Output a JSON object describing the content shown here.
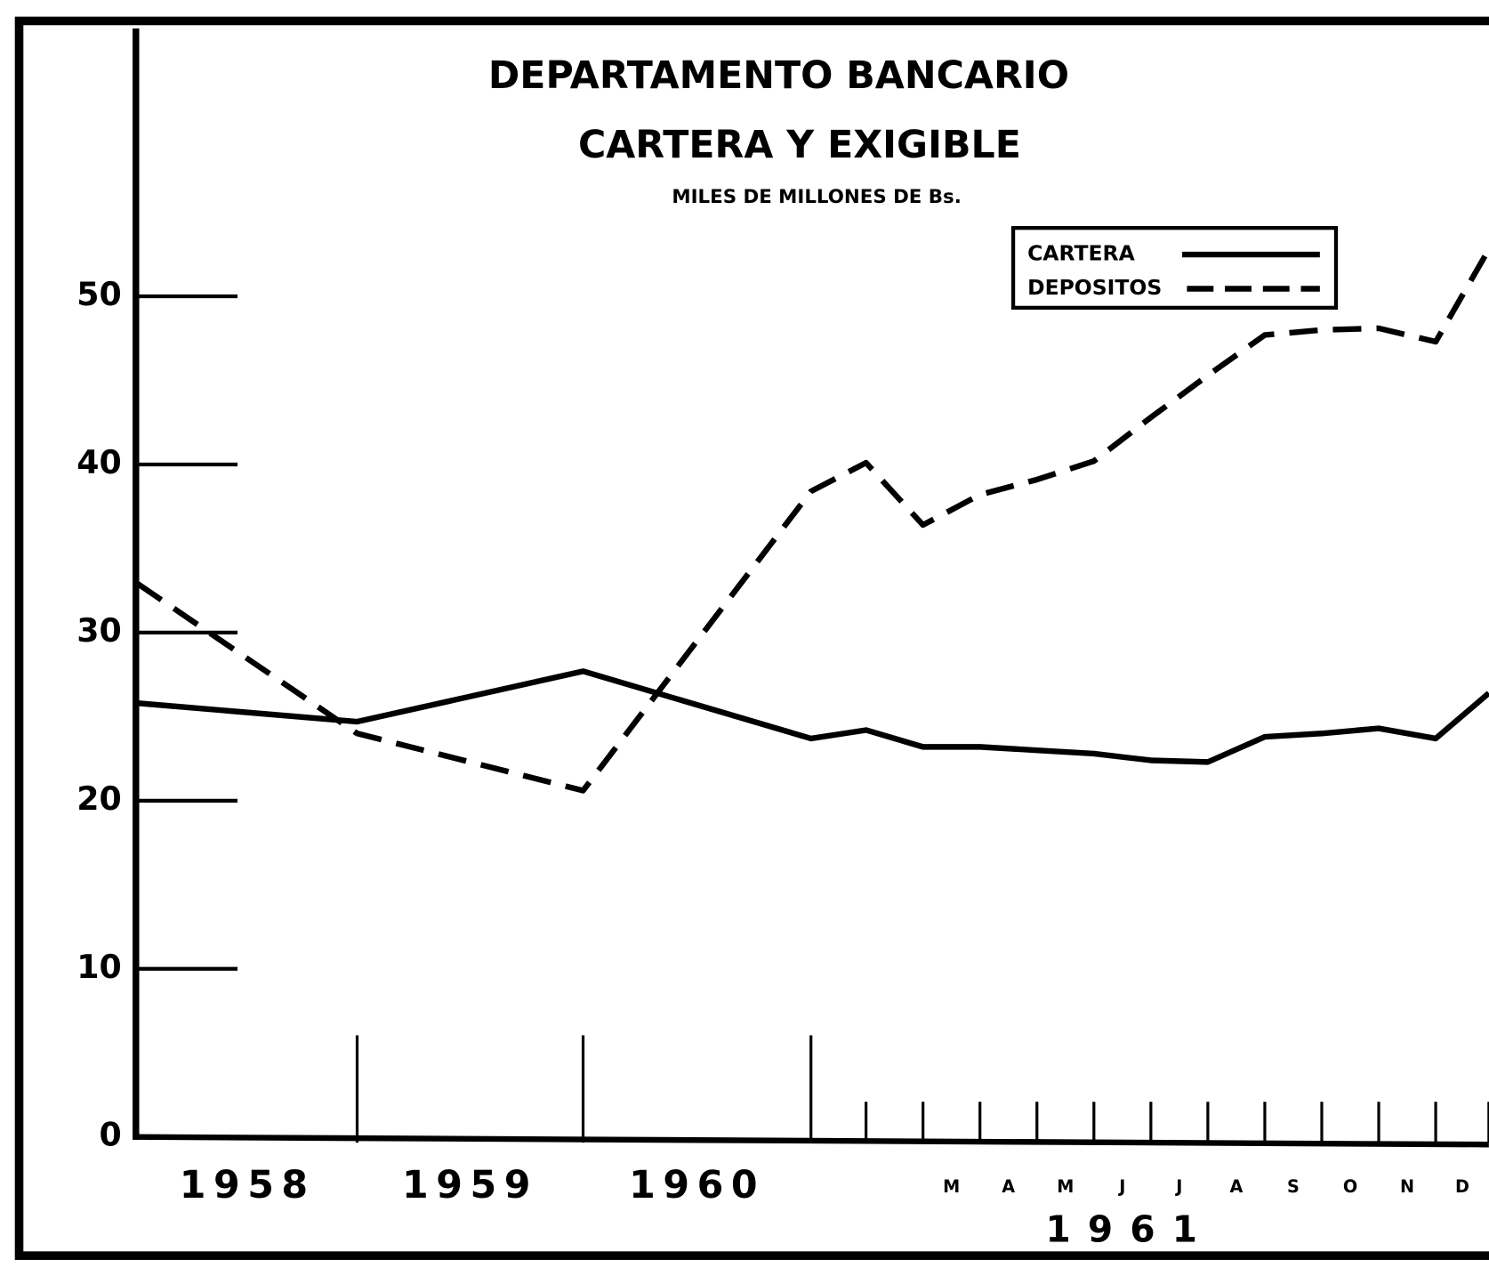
{
  "chart_data": {
    "type": "line",
    "title": "DEPARTAMENTO BANCARIO",
    "subtitle": "CARTERA Y EXIGIBLE",
    "y_axis_label": "MILES DE MILLONES DE Bs.",
    "x_group_label": "1961",
    "categories": [
      null,
      "1958",
      "1959",
      "1960",
      null,
      null,
      "M",
      "A",
      "M",
      "J",
      "J",
      "A",
      "S",
      "O",
      "N",
      "D"
    ],
    "series": [
      {
        "name": "CARTERA",
        "color": "#000000",
        "dash": "solid",
        "values": [
          25.8,
          24.7,
          27.7,
          23.7,
          24.2,
          23.2,
          23.2,
          23.0,
          22.8,
          22.4,
          22.3,
          23.8,
          24.0,
          24.3,
          23.7,
          26.4
        ]
      },
      {
        "name": "DEPOSITOS",
        "color": "#000000",
        "dash": "dashed",
        "values": [
          32.9,
          24.0,
          20.6,
          38.4,
          40.1,
          36.4,
          38.2,
          39.1,
          40.2,
          42.8,
          45.3,
          47.7,
          48.0,
          48.1,
          47.3,
          52.8
        ]
      }
    ],
    "ylim": [
      0,
      50
    ],
    "yticks": [
      0,
      10,
      20,
      30,
      40,
      50
    ],
    "legend": "top-right"
  }
}
